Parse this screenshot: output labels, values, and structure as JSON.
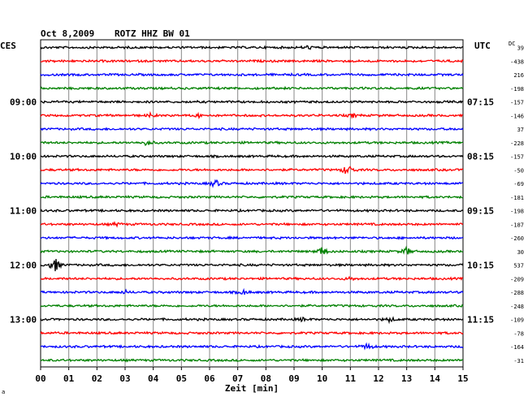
{
  "header": {
    "date": "Oct 8,2009",
    "station": "ROTZ HHZ BW 01",
    "left_zone": "CES",
    "right_zone": "UTC",
    "dc_label": "DC"
  },
  "xaxis": {
    "label": "Zeit [min]",
    "ticks": [
      "00",
      "01",
      "02",
      "03",
      "04",
      "05",
      "06",
      "07",
      "08",
      "09",
      "10",
      "11",
      "12",
      "13",
      "14",
      "15"
    ],
    "range": [
      0,
      15
    ]
  },
  "corner_mark": "a",
  "colors": {
    "trace_cycle": [
      "#000000",
      "#ff0000",
      "#0000ff",
      "#008000"
    ],
    "grid": "#000000"
  },
  "chart_data": {
    "type": "line",
    "title": "Oct 8,2009 ROTZ HHZ BW 01",
    "xlabel": "Zeit [min]",
    "xlim": [
      0,
      15
    ],
    "grid": true,
    "left_time_labels": [
      {
        "row": 4,
        "label": "09:00"
      },
      {
        "row": 8,
        "label": "10:00"
      },
      {
        "row": 12,
        "label": "11:00"
      },
      {
        "row": 16,
        "label": "12:00"
      },
      {
        "row": 20,
        "label": "13:00"
      }
    ],
    "right_time_labels": [
      {
        "row": 4,
        "label": "07:15"
      },
      {
        "row": 8,
        "label": "08:15"
      },
      {
        "row": 12,
        "label": "09:15"
      },
      {
        "row": 16,
        "label": "10:15"
      },
      {
        "row": 20,
        "label": "11:15"
      }
    ],
    "dc_offsets": [
      "39",
      "-438",
      "216",
      "-198",
      "-157",
      "-146",
      "37",
      "-228",
      "-157",
      "-50",
      "-69",
      "-181",
      "-198",
      "-187",
      "-260",
      "30",
      "537",
      "-209",
      "-288",
      "-248",
      "-109",
      "-78",
      "-164",
      "-31"
    ],
    "events": [
      {
        "row": 0,
        "minute": 9.5,
        "amplitude": 2
      },
      {
        "row": 5,
        "minute": 3.9,
        "amplitude": 2
      },
      {
        "row": 5,
        "minute": 5.6,
        "amplitude": 2
      },
      {
        "row": 5,
        "minute": 11.1,
        "amplitude": 2
      },
      {
        "row": 7,
        "minute": 3.8,
        "amplitude": 4
      },
      {
        "row": 9,
        "minute": 10.9,
        "amplitude": 8
      },
      {
        "row": 10,
        "minute": 6.2,
        "amplitude": 5
      },
      {
        "row": 13,
        "minute": 2.7,
        "amplitude": 2
      },
      {
        "row": 15,
        "minute": 10.0,
        "amplitude": 6
      },
      {
        "row": 15,
        "minute": 13.0,
        "amplitude": 5
      },
      {
        "row": 16,
        "minute": 0.5,
        "amplitude": 10
      },
      {
        "row": 17,
        "minute": 11.0,
        "amplitude": 2
      },
      {
        "row": 18,
        "minute": 3.0,
        "amplitude": 2
      },
      {
        "row": 18,
        "minute": 7.2,
        "amplitude": 3
      },
      {
        "row": 20,
        "minute": 9.3,
        "amplitude": 2
      },
      {
        "row": 20,
        "minute": 12.4,
        "amplitude": 3
      },
      {
        "row": 22,
        "minute": 11.6,
        "amplitude": 4
      }
    ]
  }
}
